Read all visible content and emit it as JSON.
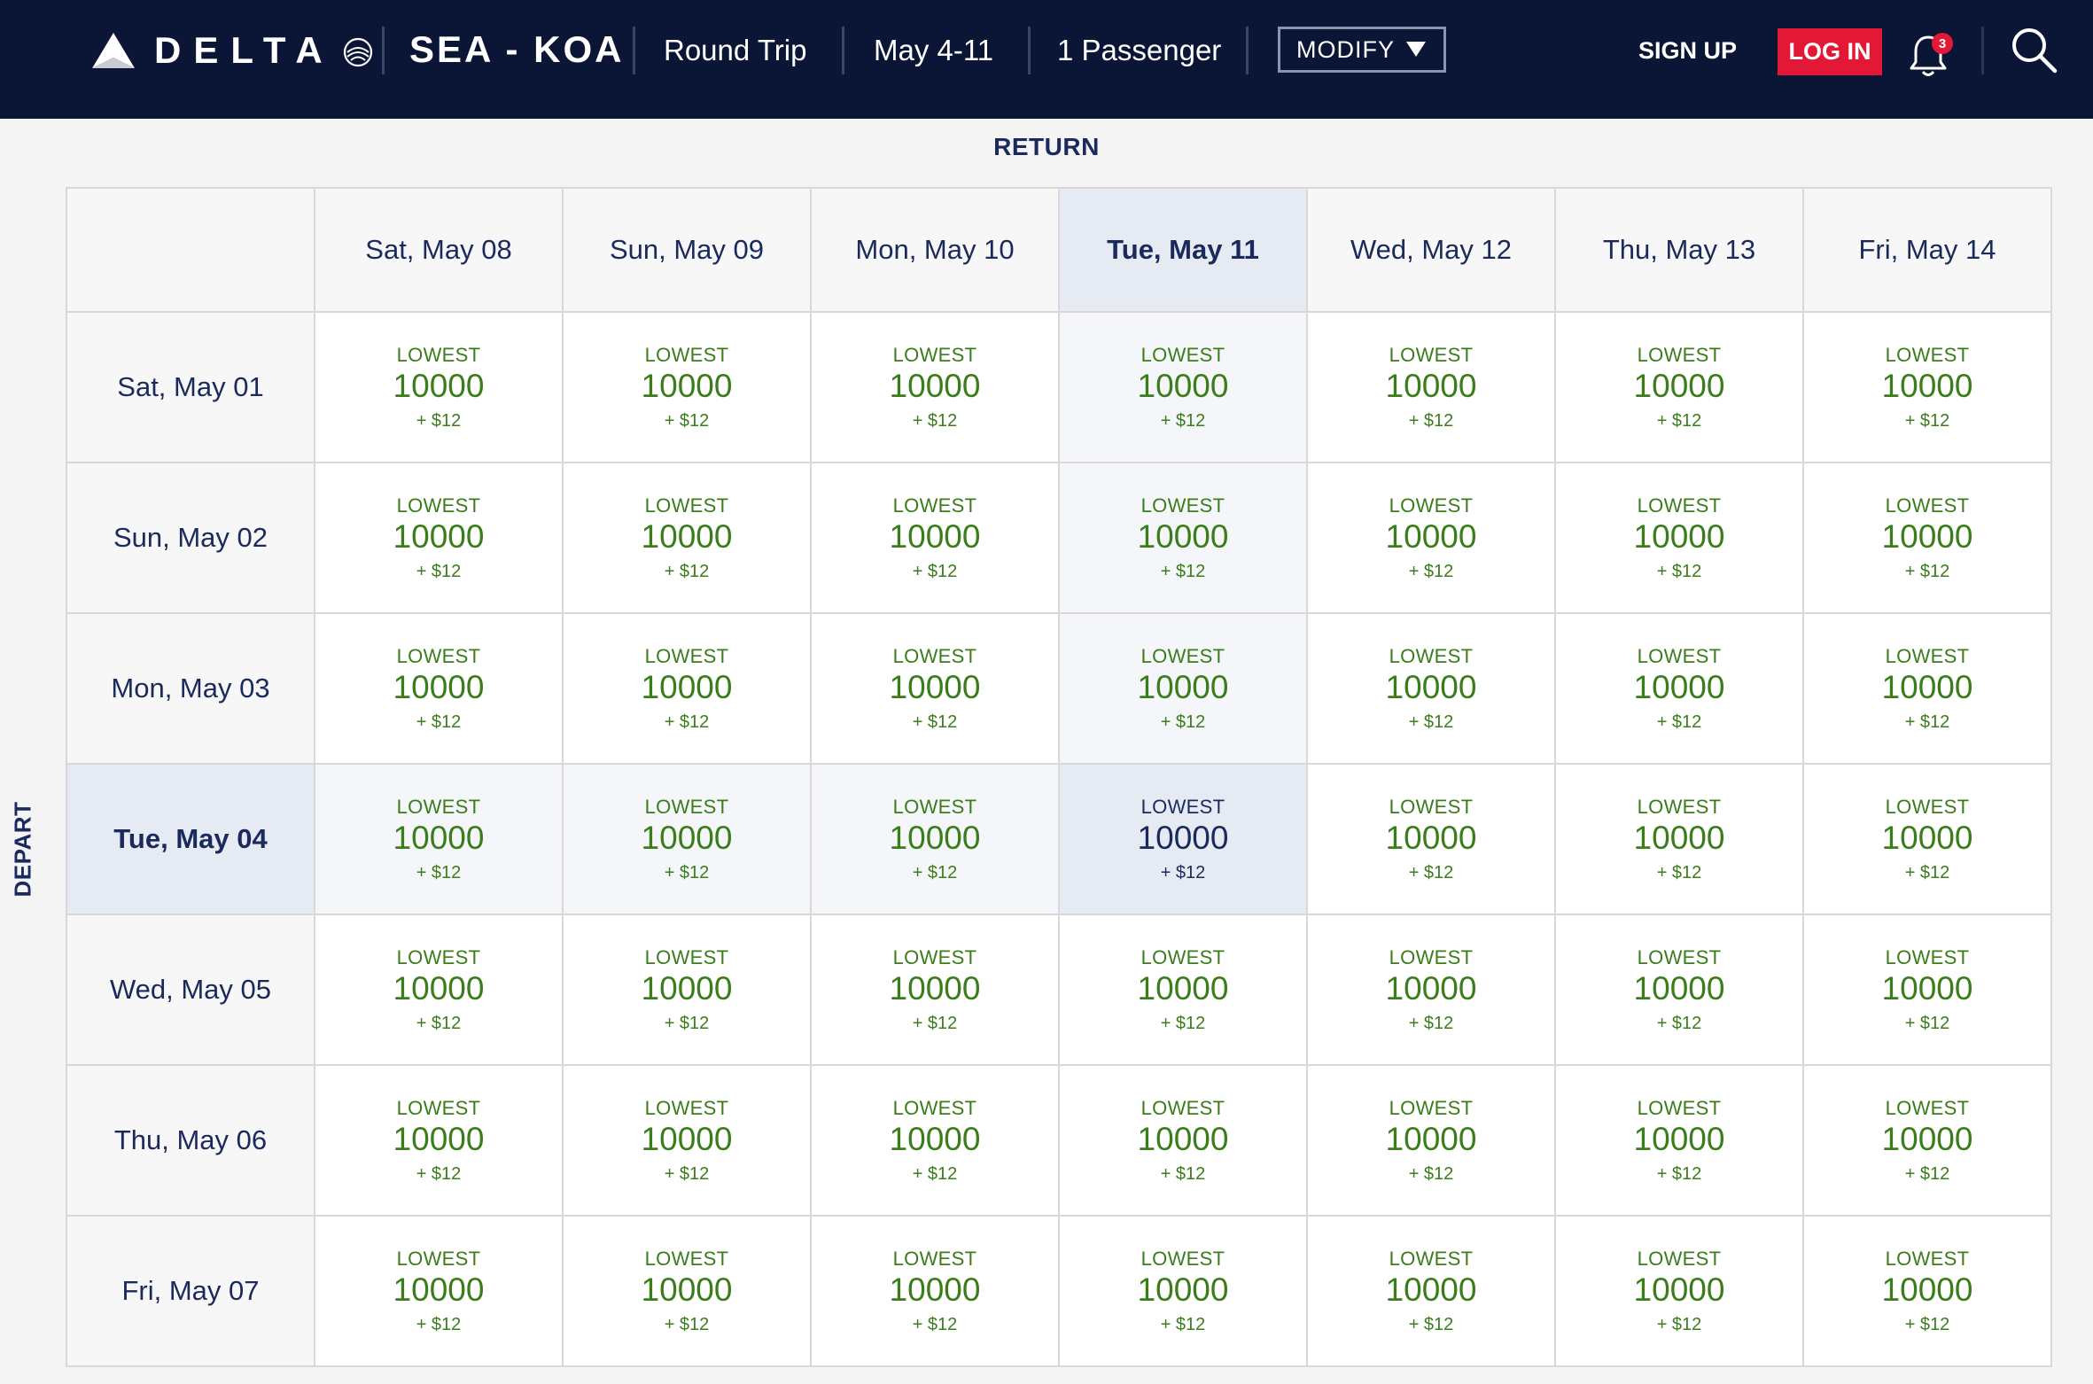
{
  "header": {
    "brand": "DELTA",
    "route": "SEA - KOA",
    "trip_type": "Round Trip",
    "dates": "May 4-11",
    "passengers": "1 Passenger",
    "modify_label": "MODIFY",
    "signup_label": "SIGN UP",
    "login_label": "LOG IN",
    "notification_count": "3"
  },
  "grid": {
    "return_label": "RETURN",
    "depart_label": "DEPART",
    "return_dates": [
      "Sat, May 08",
      "Sun, May 09",
      "Mon, May 10",
      "Tue, May 11",
      "Wed, May 12",
      "Thu, May 13",
      "Fri, May 14"
    ],
    "depart_dates": [
      "Sat, May 01",
      "Sun, May 02",
      "Mon, May 03",
      "Tue, May 04",
      "Wed, May 05",
      "Thu, May 06",
      "Fri, May 07"
    ],
    "selected_return_index": 3,
    "selected_depart_index": 3,
    "fare_label": "LOWEST",
    "fares": [
      [
        {
          "miles": "10000",
          "fee": "+ $12"
        },
        {
          "miles": "10000",
          "fee": "+ $12"
        },
        {
          "miles": "10000",
          "fee": "+ $12"
        },
        {
          "miles": "10000",
          "fee": "+ $12"
        },
        {
          "miles": "10000",
          "fee": "+ $12"
        },
        {
          "miles": "10000",
          "fee": "+ $12"
        },
        {
          "miles": "10000",
          "fee": "+ $12"
        }
      ],
      [
        {
          "miles": "10000",
          "fee": "+ $12"
        },
        {
          "miles": "10000",
          "fee": "+ $12"
        },
        {
          "miles": "10000",
          "fee": "+ $12"
        },
        {
          "miles": "10000",
          "fee": "+ $12"
        },
        {
          "miles": "10000",
          "fee": "+ $12"
        },
        {
          "miles": "10000",
          "fee": "+ $12"
        },
        {
          "miles": "10000",
          "fee": "+ $12"
        }
      ],
      [
        {
          "miles": "10000",
          "fee": "+ $12"
        },
        {
          "miles": "10000",
          "fee": "+ $12"
        },
        {
          "miles": "10000",
          "fee": "+ $12"
        },
        {
          "miles": "10000",
          "fee": "+ $12"
        },
        {
          "miles": "10000",
          "fee": "+ $12"
        },
        {
          "miles": "10000",
          "fee": "+ $12"
        },
        {
          "miles": "10000",
          "fee": "+ $12"
        }
      ],
      [
        {
          "miles": "10000",
          "fee": "+ $12"
        },
        {
          "miles": "10000",
          "fee": "+ $12"
        },
        {
          "miles": "10000",
          "fee": "+ $12"
        },
        {
          "miles": "10000",
          "fee": "+ $12"
        },
        {
          "miles": "10000",
          "fee": "+ $12"
        },
        {
          "miles": "10000",
          "fee": "+ $12"
        },
        {
          "miles": "10000",
          "fee": "+ $12"
        }
      ],
      [
        {
          "miles": "10000",
          "fee": "+ $12"
        },
        {
          "miles": "10000",
          "fee": "+ $12"
        },
        {
          "miles": "10000",
          "fee": "+ $12"
        },
        {
          "miles": "10000",
          "fee": "+ $12"
        },
        {
          "miles": "10000",
          "fee": "+ $12"
        },
        {
          "miles": "10000",
          "fee": "+ $12"
        },
        {
          "miles": "10000",
          "fee": "+ $12"
        }
      ],
      [
        {
          "miles": "10000",
          "fee": "+ $12"
        },
        {
          "miles": "10000",
          "fee": "+ $12"
        },
        {
          "miles": "10000",
          "fee": "+ $12"
        },
        {
          "miles": "10000",
          "fee": "+ $12"
        },
        {
          "miles": "10000",
          "fee": "+ $12"
        },
        {
          "miles": "10000",
          "fee": "+ $12"
        },
        {
          "miles": "10000",
          "fee": "+ $12"
        }
      ],
      [
        {
          "miles": "10000",
          "fee": "+ $12"
        },
        {
          "miles": "10000",
          "fee": "+ $12"
        },
        {
          "miles": "10000",
          "fee": "+ $12"
        },
        {
          "miles": "10000",
          "fee": "+ $12"
        },
        {
          "miles": "10000",
          "fee": "+ $12"
        },
        {
          "miles": "10000",
          "fee": "+ $12"
        },
        {
          "miles": "10000",
          "fee": "+ $12"
        }
      ]
    ]
  },
  "colors": {
    "header_bg": "#0b1637",
    "brand_red": "#e31837",
    "fare_green": "#3a7d1a",
    "navy_text": "#1b2a5c",
    "selected_bg": "#e6ebf3"
  },
  "icons": [
    "delta-widget-icon",
    "skyteam-seal-icon",
    "chevron-down-icon",
    "bell-icon",
    "search-icon"
  ]
}
